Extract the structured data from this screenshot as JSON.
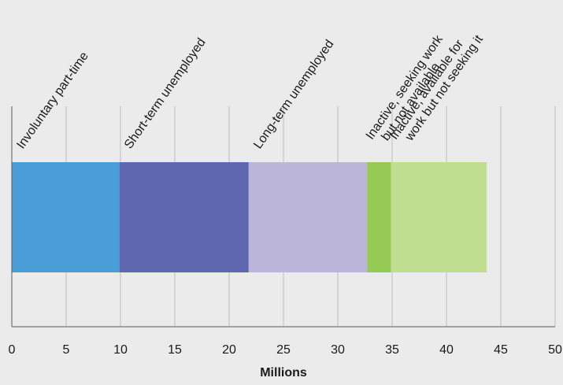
{
  "chart_data": {
    "type": "bar",
    "orientation": "horizontal",
    "stacked": true,
    "title": "",
    "xlabel": "Millions",
    "ylabel": "",
    "xlim": [
      0,
      50
    ],
    "xticks": [
      0,
      5,
      10,
      15,
      20,
      25,
      30,
      35,
      40,
      45,
      50
    ],
    "grid": true,
    "legend": "none (segment labels rotated above bar)",
    "series": [
      {
        "label_lines": [
          "Involuntary part-time"
        ],
        "value": 9.9,
        "color": "#4a9ed8"
      },
      {
        "label_lines": [
          "Short-term unemployed"
        ],
        "value": 11.9,
        "color": "#5f67b0"
      },
      {
        "label_lines": [
          "Long-term unemployed"
        ],
        "value": 10.9,
        "color": "#bab5d9"
      },
      {
        "label_lines": [
          "Inactive, seeking work",
          "but not available"
        ],
        "value": 2.2,
        "color": "#95ca55"
      },
      {
        "label_lines": [
          "Inactive, available for",
          "work but not seeking it"
        ],
        "value": 8.8,
        "color": "#c0de90"
      }
    ]
  }
}
